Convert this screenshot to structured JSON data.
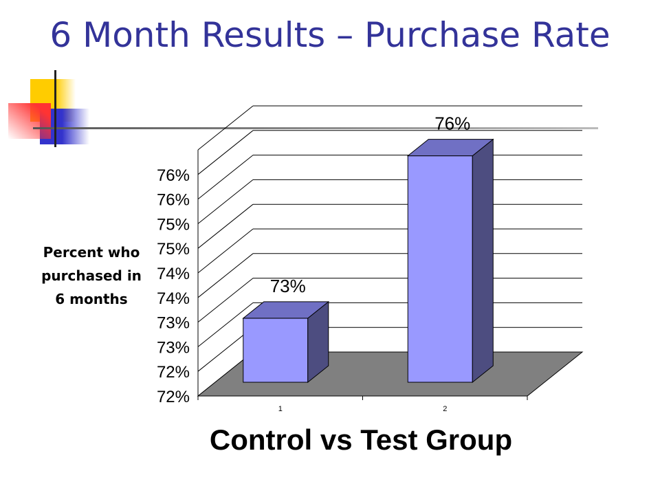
{
  "slide": {
    "title": "6 Month Results – Purchase Rate"
  },
  "colors": {
    "title": "#333399",
    "bar_front": "#9999ff",
    "bar_side": "#4d4d80",
    "bar_top": "#7070c4",
    "floor": "#808080",
    "deco_yellow": "#ffcc00",
    "deco_blue": "#3333cc",
    "deco_red": "#ff3333"
  },
  "chart_data": {
    "type": "bar",
    "categories": [
      "1",
      "2"
    ],
    "series": [
      {
        "values": [
          72.9,
          76.2
        ]
      }
    ],
    "data_labels": [
      "73%",
      "76%"
    ],
    "y_tick_labels": [
      "72%",
      "72%",
      "73%",
      "73%",
      "74%",
      "74%",
      "75%",
      "75%",
      "76%",
      "76%"
    ],
    "ylim": [
      71.6,
      76.6
    ],
    "xlabel": "Control vs Test Group",
    "ylabel": "Percent who purchased in 6 months",
    "grid": true,
    "style": "3d-column"
  }
}
